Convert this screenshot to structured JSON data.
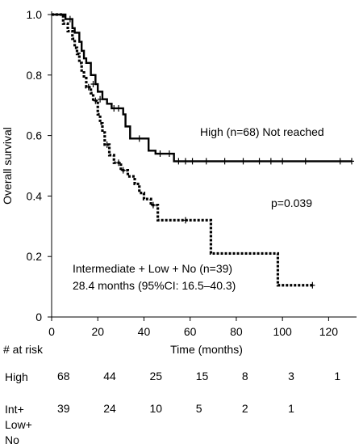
{
  "chart_data": {
    "type": "line",
    "xlabel": "Time (months)",
    "ylabel": "Overall survival",
    "xlim": [
      0,
      130
    ],
    "ylim": [
      0,
      1.0
    ],
    "xticks": [
      "0",
      "20",
      "40",
      "60",
      "80",
      "100",
      "120"
    ],
    "yticks": [
      "0",
      "0.2",
      "0.4",
      "0.6",
      "0.8",
      "1.0"
    ],
    "grid": false,
    "series": [
      {
        "name": "High (n=68) Not reached",
        "style": "solid",
        "color": "#000000",
        "steps": [
          [
            0,
            1.0
          ],
          [
            6,
            0.985
          ],
          [
            9,
            0.955
          ],
          [
            10,
            0.94
          ],
          [
            12,
            0.91
          ],
          [
            13,
            0.88
          ],
          [
            14,
            0.855
          ],
          [
            15,
            0.84
          ],
          [
            17,
            0.8
          ],
          [
            19,
            0.77
          ],
          [
            20,
            0.745
          ],
          [
            22,
            0.72
          ],
          [
            24,
            0.705
          ],
          [
            26,
            0.69
          ],
          [
            31,
            0.67
          ],
          [
            32,
            0.63
          ],
          [
            34,
            0.59
          ],
          [
            42,
            0.55
          ],
          [
            45,
            0.54
          ],
          [
            53,
            0.515
          ],
          [
            130,
            0.515
          ]
        ],
        "censored": [
          [
            8,
            0.985
          ],
          [
            18,
            0.77
          ],
          [
            21,
            0.72
          ],
          [
            27,
            0.69
          ],
          [
            29,
            0.69
          ],
          [
            38,
            0.59
          ],
          [
            47,
            0.54
          ],
          [
            51,
            0.54
          ],
          [
            55,
            0.515
          ],
          [
            58,
            0.515
          ],
          [
            61,
            0.515
          ],
          [
            67,
            0.515
          ],
          [
            75,
            0.515
          ],
          [
            83,
            0.515
          ],
          [
            90,
            0.515
          ],
          [
            95,
            0.515
          ],
          [
            100,
            0.515
          ],
          [
            110,
            0.515
          ],
          [
            125,
            0.515
          ],
          [
            130,
            0.515
          ]
        ]
      },
      {
        "name": "Intermediate + Low + No (n=39)",
        "style": "dotted",
        "color": "#000000",
        "steps": [
          [
            0,
            1.0
          ],
          [
            5,
            0.97
          ],
          [
            7,
            0.945
          ],
          [
            9,
            0.92
          ],
          [
            10,
            0.89
          ],
          [
            11,
            0.87
          ],
          [
            12,
            0.84
          ],
          [
            13,
            0.815
          ],
          [
            14,
            0.79
          ],
          [
            15,
            0.76
          ],
          [
            17,
            0.74
          ],
          [
            18,
            0.715
          ],
          [
            20,
            0.67
          ],
          [
            21,
            0.64
          ],
          [
            22,
            0.61
          ],
          [
            23,
            0.57
          ],
          [
            25,
            0.535
          ],
          [
            27,
            0.51
          ],
          [
            30,
            0.485
          ],
          [
            33,
            0.465
          ],
          [
            36,
            0.44
          ],
          [
            38,
            0.41
          ],
          [
            40,
            0.39
          ],
          [
            43,
            0.37
          ],
          [
            46,
            0.32
          ],
          [
            69,
            0.21
          ],
          [
            98,
            0.105
          ],
          [
            113,
            0.105
          ]
        ],
        "censored": [
          [
            16,
            0.76
          ],
          [
            19,
            0.715
          ],
          [
            24,
            0.57
          ],
          [
            29,
            0.51
          ],
          [
            31,
            0.485
          ],
          [
            44,
            0.37
          ],
          [
            58,
            0.32
          ],
          [
            113,
            0.105
          ]
        ]
      }
    ],
    "annotations": {
      "high_label": "High (n=68) Not reached",
      "pvalue": "p=0.039",
      "low_line1": "Intermediate + Low + No (n=39)",
      "low_line2": "28.4 months (95%CI: 16.5–40.3)"
    }
  },
  "risk_table": {
    "header": "# at risk",
    "rows": [
      {
        "name": "High",
        "values": [
          "68",
          "44",
          "25",
          "15",
          "8",
          "3",
          "1"
        ]
      },
      {
        "name": "Int+\nLow+\nNo",
        "values": [
          "39",
          "24",
          "10",
          "5",
          "2",
          "1"
        ]
      }
    ]
  }
}
